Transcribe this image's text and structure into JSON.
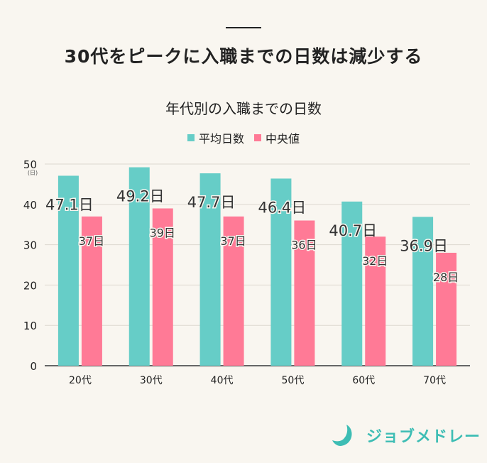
{
  "headline": "30代をピークに入職までの日数は減少する",
  "chart_data": {
    "type": "bar",
    "title": "年代別の入職までの日数",
    "categories": [
      "20代",
      "30代",
      "40代",
      "50代",
      "60代",
      "70代"
    ],
    "series": [
      {
        "name": "平均日数",
        "color": "#66cdc7",
        "values": [
          47.1,
          49.2,
          47.7,
          46.4,
          40.7,
          36.9
        ],
        "labels": [
          "47.1日",
          "49.2日",
          "47.7日",
          "46.4日",
          "40.7日",
          "36.9日"
        ]
      },
      {
        "name": "中央値",
        "color": "#ff7a96",
        "values": [
          37,
          39,
          37,
          36,
          32,
          28
        ],
        "labels": [
          "37日",
          "39日",
          "37日",
          "36日",
          "32日",
          "28日"
        ]
      }
    ],
    "ylim": [
      0,
      50
    ],
    "yticks": [
      0,
      10,
      20,
      30,
      40,
      50
    ],
    "yunit": "(日)",
    "grid": true,
    "legend": "top"
  },
  "logo": {
    "text": "ジョブメドレー",
    "color": "#3dbdb4"
  }
}
